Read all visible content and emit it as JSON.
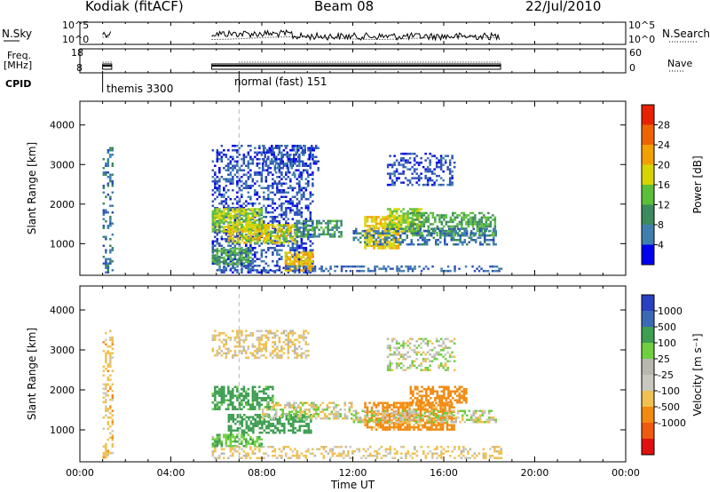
{
  "header": {
    "station": "Kodiak (fitACF)",
    "beam": "Beam 08",
    "date": "22/Jul/2010"
  },
  "panels": {
    "nsky_label": "N.Sky",
    "nsearch_label": "N.Search",
    "freq_label_1": "Freq.",
    "freq_label_2": "[MHz]",
    "nave_label": "Nave",
    "cpid_label": "CPID",
    "nsky_ticks": [
      "10^5",
      "10^0"
    ],
    "nsearch_ticks": [
      "10^5",
      "10^0"
    ],
    "freq_ticks": [
      "18",
      "8"
    ],
    "nave_ticks": [
      "60",
      "0"
    ],
    "cpid_modes": [
      {
        "name": "themis 3300",
        "start_hour": 1.0
      },
      {
        "name": "normal (fast) 151",
        "start_hour": 7.0
      }
    ]
  },
  "colors": {
    "power_scale": [
      "#0000ee",
      "#2d4fb6",
      "#3f7fb0",
      "#3b8b5c",
      "#5cbf3a",
      "#d8d400",
      "#f2a000",
      "#f06400",
      "#e82200"
    ],
    "velocity_scale": [
      "#e01010",
      "#f05a10",
      "#f28a10",
      "#f0c050",
      "#c8c8c0",
      "#b8b8b0",
      "#6fcf40",
      "#3e9e52",
      "#3b6ab5",
      "#2a40c0"
    ]
  },
  "chart_data": [
    {
      "type": "heatmap",
      "name": "power",
      "xlabel": "",
      "ylabel": "Slant Range [km]",
      "xlim": [
        0,
        24
      ],
      "ylim": [
        200,
        4600
      ],
      "y_ticks": [
        1000,
        2000,
        3000,
        4000
      ],
      "colorbar": {
        "label": "Power [dB]",
        "ticks": [
          4,
          8,
          12,
          16,
          20,
          24,
          28
        ],
        "range": [
          0,
          32
        ]
      },
      "regions": [
        {
          "t": [
            1.0,
            1.4
          ],
          "r": [
            300,
            3500
          ],
          "level": 10,
          "density": 0.35
        },
        {
          "t": [
            5.8,
            10.2
          ],
          "r": [
            300,
            3500
          ],
          "level": 6,
          "density": 0.4
        },
        {
          "t": [
            5.8,
            8.0
          ],
          "r": [
            1300,
            1900
          ],
          "level": 20,
          "density": 0.75
        },
        {
          "t": [
            6.5,
            9.5
          ],
          "r": [
            1000,
            1500
          ],
          "level": 22,
          "density": 0.7
        },
        {
          "t": [
            9.0,
            10.2
          ],
          "r": [
            300,
            800
          ],
          "level": 24,
          "density": 0.7
        },
        {
          "t": [
            5.8,
            7.5
          ],
          "r": [
            500,
            900
          ],
          "level": 16,
          "density": 0.6
        },
        {
          "t": [
            6.0,
            18.5
          ],
          "r": [
            300,
            450
          ],
          "level": 8,
          "density": 0.35
        },
        {
          "t": [
            9.5,
            11.5
          ],
          "r": [
            1200,
            1600
          ],
          "level": 14,
          "density": 0.6
        },
        {
          "t": [
            12.5,
            14.0
          ],
          "r": [
            900,
            1700
          ],
          "level": 24,
          "density": 0.7
        },
        {
          "t": [
            13.5,
            15.0
          ],
          "r": [
            1300,
            1900
          ],
          "level": 20,
          "density": 0.7
        },
        {
          "t": [
            14.5,
            18.3
          ],
          "r": [
            1200,
            1800
          ],
          "level": 16,
          "density": 0.6
        },
        {
          "t": [
            12.0,
            18.3
          ],
          "r": [
            1000,
            1400
          ],
          "level": 10,
          "density": 0.45
        },
        {
          "t": [
            13.5,
            16.5
          ],
          "r": [
            2500,
            3300
          ],
          "level": 6,
          "density": 0.4
        },
        {
          "t": [
            8.0,
            10.5
          ],
          "r": [
            2800,
            3500
          ],
          "level": 6,
          "density": 0.35
        }
      ]
    },
    {
      "type": "heatmap",
      "name": "velocity",
      "xlabel": "Time UT",
      "ylabel": "Slant Range [km]",
      "xlim": [
        0,
        24
      ],
      "ylim": [
        200,
        4600
      ],
      "x_ticks": [
        "00:00",
        "04:00",
        "08:00",
        "12:00",
        "16:00",
        "20:00",
        "00:00"
      ],
      "y_ticks": [
        1000,
        2000,
        3000,
        4000
      ],
      "colorbar": {
        "label": "Velocity [m s⁻¹]",
        "ticks": [
          "1000",
          "500",
          "100",
          "25",
          "-25",
          "-100",
          "-500",
          "-1000"
        ]
      },
      "regions": [
        {
          "t": [
            1.0,
            1.4
          ],
          "r": [
            300,
            3500
          ],
          "vel": -60,
          "density": 0.35
        },
        {
          "t": [
            5.8,
            10.0
          ],
          "r": [
            2800,
            3500
          ],
          "vel": -40,
          "density": 0.45
        },
        {
          "t": [
            5.8,
            18.5
          ],
          "r": [
            300,
            600
          ],
          "vel": -40,
          "density": 0.35
        },
        {
          "t": [
            5.8,
            8.5
          ],
          "r": [
            1500,
            2100
          ],
          "vel": 150,
          "density": 0.6
        },
        {
          "t": [
            6.5,
            10.2
          ],
          "r": [
            900,
            1400
          ],
          "vel": 300,
          "density": 0.6
        },
        {
          "t": [
            5.8,
            8.0
          ],
          "r": [
            600,
            900
          ],
          "vel": 80,
          "density": 0.6
        },
        {
          "t": [
            8.0,
            12.0
          ],
          "r": [
            1300,
            1700
          ],
          "vel": 0,
          "density": 0.55
        },
        {
          "t": [
            12.5,
            16.5
          ],
          "r": [
            1000,
            1700
          ],
          "vel": -150,
          "density": 0.7
        },
        {
          "t": [
            14.5,
            17.0
          ],
          "r": [
            1700,
            2100
          ],
          "vel": -200,
          "density": 0.6
        },
        {
          "t": [
            12.0,
            18.3
          ],
          "r": [
            1200,
            1500
          ],
          "vel": 5,
          "density": 0.5
        },
        {
          "t": [
            13.5,
            16.5
          ],
          "r": [
            2500,
            3300
          ],
          "vel": 10,
          "density": 0.35
        }
      ]
    }
  ]
}
